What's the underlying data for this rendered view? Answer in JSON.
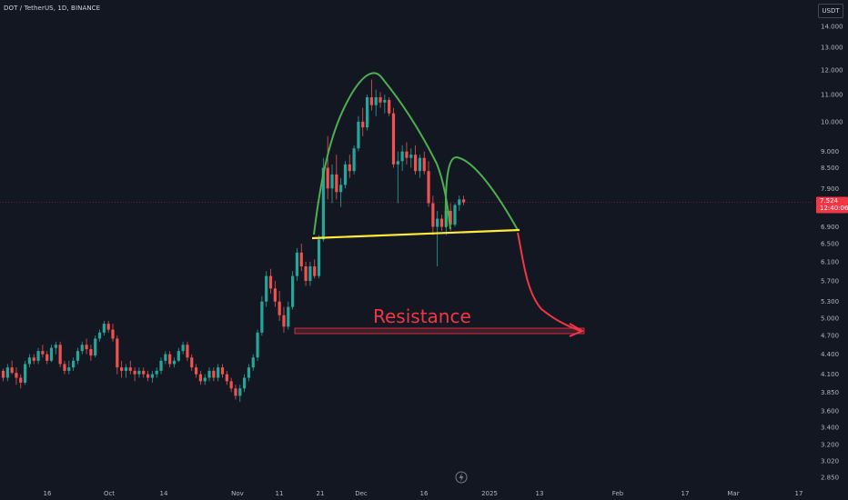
{
  "header": {
    "symbol_title": "DOT / TetherUS, 1D, BINANCE",
    "currency": "USDT"
  },
  "price_tag": {
    "price": "7.524",
    "countdown": "12:40:06",
    "color": "#f23645"
  },
  "colors": {
    "background": "#131722",
    "up": "#26a69a",
    "down": "#ef5350",
    "arc": "#4caf50",
    "neckline": "#ffeb3b",
    "projection": "#f23645",
    "resistance_text": "#f23645"
  },
  "annotations": {
    "resistance_label": "Resistance",
    "reload_icon": "lightning-bolt-icon"
  },
  "chart_data": {
    "type": "candlestick",
    "title": "DOT / TetherUS, 1D, BINANCE",
    "y_scale": "log",
    "ylim": [
      2.7,
      15.0
    ],
    "y_ticks": [
      "14.000",
      "13.000",
      "12.000",
      "11.000",
      "10.000",
      "9.000",
      "8.500",
      "7.900",
      "7.524",
      "6.900",
      "6.500",
      "6.100",
      "5.700",
      "5.300",
      "5.000",
      "4.700",
      "4.400",
      "4.100",
      "3.850",
      "3.600",
      "3.400",
      "3.200",
      "3.020",
      "2.850"
    ],
    "x_ticks": [
      "16",
      "Oct",
      "14",
      "Nov",
      "11",
      "21",
      "Dec",
      "16",
      "2025",
      "13",
      "Feb",
      "17",
      "Mar",
      "17"
    ],
    "grid": false,
    "pattern": "head-and-shoulders",
    "neckline": [
      6.6,
      6.85
    ],
    "resistance_zone": [
      4.7,
      4.8
    ],
    "series": [
      {
        "values": [
          [
            4.15,
            4.18,
            4.0,
            4.05
          ],
          [
            4.05,
            4.25,
            4.0,
            4.2
          ],
          [
            4.2,
            4.3,
            4.1,
            4.12
          ],
          [
            4.12,
            4.2,
            3.95,
            4.05
          ],
          [
            4.05,
            4.1,
            3.9,
            3.98
          ],
          [
            3.98,
            4.3,
            3.95,
            4.25
          ],
          [
            4.25,
            4.4,
            4.2,
            4.35
          ],
          [
            4.35,
            4.4,
            4.25,
            4.3
          ],
          [
            4.3,
            4.5,
            4.25,
            4.45
          ],
          [
            4.45,
            4.55,
            4.35,
            4.4
          ],
          [
            4.4,
            4.45,
            4.25,
            4.3
          ],
          [
            4.3,
            4.55,
            4.28,
            4.5
          ],
          [
            4.5,
            4.6,
            4.4,
            4.55
          ],
          [
            4.55,
            4.6,
            4.2,
            4.25
          ],
          [
            4.25,
            4.3,
            4.1,
            4.15
          ],
          [
            4.15,
            4.3,
            4.1,
            4.2
          ],
          [
            4.2,
            4.35,
            4.15,
            4.3
          ],
          [
            4.3,
            4.5,
            4.25,
            4.45
          ],
          [
            4.45,
            4.6,
            4.4,
            4.55
          ],
          [
            4.55,
            4.65,
            4.4,
            4.48
          ],
          [
            4.48,
            4.55,
            4.3,
            4.38
          ],
          [
            4.38,
            4.7,
            4.35,
            4.65
          ],
          [
            4.65,
            4.8,
            4.6,
            4.75
          ],
          [
            4.75,
            4.95,
            4.7,
            4.9
          ],
          [
            4.9,
            4.95,
            4.75,
            4.8
          ],
          [
            4.8,
            4.9,
            4.6,
            4.65
          ],
          [
            4.65,
            4.7,
            4.1,
            4.2
          ],
          [
            4.2,
            4.3,
            4.05,
            4.15
          ],
          [
            4.15,
            4.25,
            4.05,
            4.2
          ],
          [
            4.2,
            4.3,
            4.1,
            4.15
          ],
          [
            4.15,
            4.2,
            4.0,
            4.1
          ],
          [
            4.1,
            4.2,
            4.05,
            4.15
          ],
          [
            4.15,
            4.2,
            4.05,
            4.1
          ],
          [
            4.1,
            4.15,
            4.0,
            4.05
          ],
          [
            4.05,
            4.15,
            3.98,
            4.1
          ],
          [
            4.1,
            4.2,
            4.05,
            4.15
          ],
          [
            4.15,
            4.35,
            4.1,
            4.3
          ],
          [
            4.3,
            4.45,
            4.25,
            4.4
          ],
          [
            4.4,
            4.45,
            4.2,
            4.25
          ],
          [
            4.25,
            4.35,
            4.2,
            4.3
          ],
          [
            4.3,
            4.5,
            4.28,
            4.45
          ],
          [
            4.45,
            4.6,
            4.4,
            4.55
          ],
          [
            4.55,
            4.6,
            4.3,
            4.35
          ],
          [
            4.35,
            4.4,
            4.15,
            4.2
          ],
          [
            4.2,
            4.25,
            4.05,
            4.1
          ],
          [
            4.1,
            4.15,
            3.95,
            4.0
          ],
          [
            4.0,
            4.1,
            3.95,
            4.05
          ],
          [
            4.05,
            4.2,
            4.0,
            4.15
          ],
          [
            4.15,
            4.2,
            4.0,
            4.05
          ],
          [
            4.05,
            4.25,
            4.0,
            4.2
          ],
          [
            4.2,
            4.25,
            4.05,
            4.1
          ],
          [
            4.1,
            4.15,
            3.95,
            4.0
          ],
          [
            4.0,
            4.05,
            3.85,
            3.9
          ],
          [
            3.9,
            3.95,
            3.75,
            3.8
          ],
          [
            3.8,
            3.95,
            3.72,
            3.9
          ],
          [
            3.9,
            4.1,
            3.85,
            4.05
          ],
          [
            4.05,
            4.25,
            4.0,
            4.2
          ],
          [
            4.2,
            4.4,
            4.15,
            4.35
          ],
          [
            4.35,
            4.8,
            4.3,
            4.75
          ],
          [
            4.75,
            5.4,
            4.7,
            5.3
          ],
          [
            5.3,
            5.9,
            5.2,
            5.8
          ],
          [
            5.8,
            5.95,
            5.45,
            5.55
          ],
          [
            5.55,
            5.7,
            5.2,
            5.3
          ],
          [
            5.3,
            5.5,
            4.95,
            5.05
          ],
          [
            5.05,
            5.2,
            4.75,
            4.85
          ],
          [
            4.85,
            5.3,
            4.8,
            5.2
          ],
          [
            5.2,
            5.9,
            5.15,
            5.8
          ],
          [
            5.8,
            6.4,
            5.7,
            6.3
          ],
          [
            6.3,
            6.5,
            5.9,
            6.0
          ],
          [
            6.0,
            6.1,
            5.6,
            5.7
          ],
          [
            5.7,
            6.1,
            5.6,
            6.0
          ],
          [
            6.0,
            6.15,
            5.75,
            5.8
          ],
          [
            5.8,
            6.7,
            5.75,
            6.6
          ],
          [
            6.6,
            8.8,
            6.55,
            8.5
          ],
          [
            8.5,
            9.5,
            7.6,
            7.9
          ],
          [
            7.9,
            8.6,
            7.5,
            8.3
          ],
          [
            8.3,
            8.9,
            7.6,
            7.8
          ],
          [
            7.8,
            8.2,
            7.4,
            8.0
          ],
          [
            8.0,
            8.7,
            7.9,
            8.6
          ],
          [
            8.6,
            8.9,
            8.2,
            8.4
          ],
          [
            8.4,
            9.2,
            8.3,
            9.1
          ],
          [
            9.1,
            10.2,
            9.0,
            10.0
          ],
          [
            10.0,
            10.5,
            9.5,
            9.8
          ],
          [
            9.8,
            11.0,
            9.7,
            10.9
          ],
          [
            10.9,
            11.6,
            10.4,
            10.6
          ],
          [
            10.6,
            11.2,
            10.2,
            10.9
          ],
          [
            10.9,
            11.1,
            10.5,
            10.7
          ],
          [
            10.7,
            11.0,
            10.3,
            10.8
          ],
          [
            10.8,
            10.9,
            10.2,
            10.3
          ],
          [
            10.3,
            10.5,
            8.5,
            8.6
          ],
          [
            8.6,
            9.0,
            7.5,
            8.7
          ],
          [
            8.7,
            9.2,
            8.4,
            9.0
          ],
          [
            9.0,
            9.3,
            8.6,
            8.8
          ],
          [
            8.8,
            9.1,
            8.5,
            8.9
          ],
          [
            8.9,
            9.2,
            8.3,
            8.4
          ],
          [
            8.4,
            8.9,
            8.2,
            8.8
          ],
          [
            8.8,
            9.0,
            8.3,
            8.4
          ],
          [
            8.4,
            8.7,
            7.4,
            7.5
          ],
          [
            7.5,
            7.7,
            6.7,
            6.9
          ],
          [
            6.9,
            7.3,
            6.0,
            7.1
          ],
          [
            7.1,
            7.2,
            6.8,
            6.9
          ],
          [
            6.9,
            7.4,
            6.7,
            7.3
          ],
          [
            7.3,
            7.5,
            6.8,
            6.95
          ],
          [
            6.95,
            7.5,
            6.9,
            7.45
          ],
          [
            7.45,
            7.7,
            7.3,
            7.6
          ],
          [
            7.6,
            7.7,
            7.45,
            7.524
          ]
        ]
      }
    ]
  }
}
